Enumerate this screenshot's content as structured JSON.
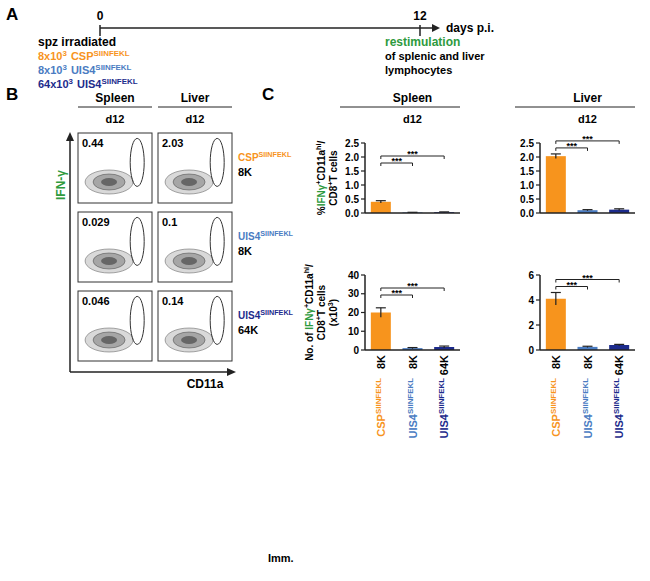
{
  "panel_a": {
    "label": "A",
    "xlim": [
      0,
      12
    ],
    "xticks": [
      0,
      12
    ],
    "unit": "days p.i.",
    "left_title": "spz irradiated",
    "immunizations": [
      {
        "dose": "8x10",
        "dose_superscript": "3",
        "name": "CSP",
        "superscript": "SIINFEKL",
        "color": "#f7941d"
      },
      {
        "dose": "8x10",
        "dose_superscript": "3",
        "name": "UIS4",
        "superscript": "SIINFEKL",
        "color": "#4a7cc2"
      },
      {
        "dose": "64x10",
        "dose_superscript": "3",
        "name": "UIS4",
        "superscript": "SIINFEKL",
        "color": "#1c2b8c"
      }
    ],
    "right_title": {
      "text": "restimulation",
      "color": "#2e9a3e"
    },
    "right_lines": [
      "of splenic and liver",
      "lymphocytes"
    ]
  },
  "panel_b": {
    "label": "B",
    "columns": [
      "Spleen",
      "Liver"
    ],
    "day": "d12",
    "y_axis": {
      "text": "IFN-γ",
      "color": "#2e9a3e"
    },
    "x_axis": "CD11a",
    "rows": [
      {
        "name": "CSP",
        "superscript": "SIINFEKL",
        "dose": "8K",
        "color": "#f7941d",
        "values": [
          0.44,
          2.03
        ]
      },
      {
        "name": "UIS4",
        "superscript": "SIINFEKL",
        "dose": "8K",
        "color": "#4a7cc2",
        "values": [
          0.029,
          0.1
        ]
      },
      {
        "name": "UIS4",
        "superscript": "SIINFEKL",
        "dose": "64K",
        "color": "#1c2b8c",
        "values": [
          0.046,
          0.14
        ]
      }
    ]
  },
  "panel_c": {
    "label": "C",
    "x_title": "Imm."
  },
  "chart_data": [
    {
      "type": "bar",
      "title": "Spleen",
      "subtitle": "d12",
      "ylabel": [
        [
          {
            "text": "%"
          },
          {
            "text": "IFNγ",
            "color": "#2e9a3e"
          },
          {
            "superscript": "+"
          },
          {
            "text": "CD11a"
          },
          {
            "superscript": "hi"
          },
          {
            "text": "/"
          }
        ],
        [
          {
            "text": "CD8"
          },
          {
            "superscript": "+"
          },
          {
            "text": "T cells"
          }
        ]
      ],
      "categories": [
        "8K",
        "8K",
        "64K"
      ],
      "values": [
        0.4,
        0.02,
        0.03
      ],
      "errors": [
        0.04,
        0.005,
        0.01
      ],
      "colors": [
        "#f7941d",
        "#4a7cc2",
        "#1c2b8c"
      ],
      "ylim": [
        0,
        2.5
      ],
      "yticks": [
        {
          "value": 0,
          "label": "0.0"
        },
        0.5,
        {
          "value": 1,
          "label": "1.0"
        },
        1.5,
        {
          "value": 2,
          "label": "2.0"
        },
        2.5
      ],
      "annotations": [
        {
          "text": "***",
          "from": 0,
          "to": 1
        },
        {
          "text": "***",
          "from": 0,
          "to": 2
        }
      ],
      "tick_labels": "y"
    },
    {
      "type": "bar",
      "title": "Liver",
      "subtitle": "d12",
      "categories": [
        "8K",
        "8K",
        "64K"
      ],
      "values": [
        2.03,
        0.1,
        0.12
      ],
      "errors": [
        0.08,
        0.02,
        0.03
      ],
      "colors": [
        "#f7941d",
        "#4a7cc2",
        "#1c2b8c"
      ],
      "ylim": [
        0,
        2.5
      ],
      "yticks": [
        {
          "value": 0,
          "label": "0.0"
        },
        0.5,
        {
          "value": 1,
          "label": "1.0"
        },
        1.5,
        {
          "value": 2,
          "label": "2.0"
        },
        2.5
      ],
      "annotations": [
        {
          "text": "***",
          "from": 0,
          "to": 1
        },
        {
          "text": "***",
          "from": 0,
          "to": 2
        }
      ],
      "tick_labels": "y"
    },
    {
      "type": "bar",
      "ylabel": [
        [
          {
            "text": "No. of "
          },
          {
            "text": "IFNγ",
            "color": "#2e9a3e"
          },
          {
            "superscript": "+"
          },
          {
            "text": "CD11a"
          },
          {
            "superscript": "hi"
          },
          {
            "text": "/"
          }
        ],
        [
          {
            "text": "CD8"
          },
          {
            "superscript": "+"
          },
          {
            "text": "T cells"
          }
        ],
        [
          {
            "text": "(x10"
          },
          {
            "superscript": "3"
          },
          {
            "text": ")"
          }
        ]
      ],
      "categories": [
        "8K",
        "8K",
        "64K"
      ],
      "category_groups": [
        {
          "name": "CSP",
          "superscript": "SIINFEKL"
        },
        {
          "name": "UIS4",
          "superscript": "SIINFEKL"
        },
        {
          "name": "UIS4",
          "superscript": "SIINFEKL"
        }
      ],
      "values": [
        20,
        1,
        1.6
      ],
      "errors": [
        2.5,
        0.3,
        0.5
      ],
      "colors": [
        "#f7941d",
        "#4a7cc2",
        "#1c2b8c"
      ],
      "ylim": [
        0,
        40
      ],
      "yticks": [
        0,
        10,
        20,
        30,
        40
      ],
      "annotations": [
        {
          "text": "***",
          "from": 0,
          "to": 1
        },
        {
          "text": "***",
          "from": 0,
          "to": 2
        }
      ]
    },
    {
      "type": "bar",
      "categories": [
        "8K",
        "8K",
        "64K"
      ],
      "category_groups": [
        {
          "name": "CSP",
          "superscript": "SIINFEKL"
        },
        {
          "name": "UIS4",
          "superscript": "SIINFEKL"
        },
        {
          "name": "UIS4",
          "superscript": "SIINFEKL"
        }
      ],
      "values": [
        4.1,
        0.25,
        0.4
      ],
      "errors": [
        0.5,
        0.05,
        0.05
      ],
      "colors": [
        "#f7941d",
        "#4a7cc2",
        "#1c2b8c"
      ],
      "ylim": [
        0,
        6
      ],
      "yticks": [
        0,
        2,
        4,
        6
      ],
      "annotations": [
        {
          "text": "***",
          "from": 0,
          "to": 1
        },
        {
          "text": "***",
          "from": 0,
          "to": 2
        }
      ]
    }
  ]
}
